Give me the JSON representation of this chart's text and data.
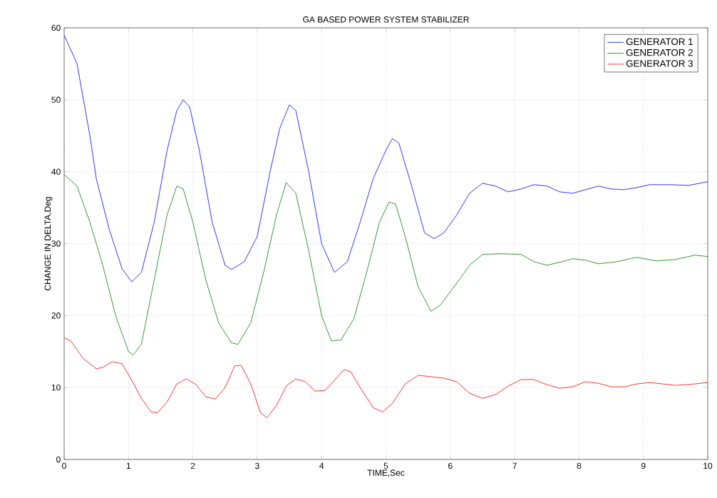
{
  "chart_data": {
    "type": "line",
    "title": "GA BASED POWER SYSTEM STABILIZER",
    "xlabel": "TIME,Sec",
    "ylabel": "CHANGE IN DELTA,Deg",
    "xlim": [
      0,
      10
    ],
    "ylim": [
      0,
      60
    ],
    "xticks": [
      0,
      1,
      2,
      3,
      4,
      5,
      6,
      7,
      8,
      9,
      10
    ],
    "yticks": [
      0,
      10,
      20,
      30,
      40,
      50,
      60
    ],
    "grid": true,
    "legend": "top right",
    "series": [
      {
        "name": "GENERATOR 1",
        "color": "#0000ff",
        "x": [
          0,
          0.2,
          0.4,
          0.5,
          0.7,
          0.9,
          1.05,
          1.2,
          1.4,
          1.6,
          1.75,
          1.85,
          1.95,
          2.1,
          2.3,
          2.5,
          2.6,
          2.8,
          3.0,
          3.2,
          3.35,
          3.5,
          3.6,
          3.8,
          4.0,
          4.2,
          4.4,
          4.6,
          4.8,
          5.0,
          5.1,
          5.2,
          5.4,
          5.6,
          5.75,
          5.9,
          6.1,
          6.3,
          6.5,
          6.7,
          6.9,
          7.1,
          7.3,
          7.5,
          7.7,
          7.9,
          8.1,
          8.3,
          8.5,
          8.7,
          8.9,
          9.1,
          9.4,
          9.7,
          10
        ],
        "values": [
          59,
          55,
          45,
          39,
          32,
          26.5,
          24.7,
          26,
          33,
          43,
          48.5,
          50,
          49,
          43,
          33,
          27,
          26.4,
          27.5,
          31,
          40,
          46,
          49.3,
          48.5,
          40,
          30,
          26,
          27.5,
          33,
          39,
          43,
          44.6,
          44,
          38,
          31.5,
          30.7,
          31.5,
          34,
          37,
          38.4,
          38,
          37.2,
          37.6,
          38.2,
          38,
          37.2,
          37,
          37.5,
          38,
          37.6,
          37.5,
          37.8,
          38.2,
          38.2,
          38.1,
          38.6
        ]
      },
      {
        "name": "GENERATOR 2",
        "color": "#008000",
        "x": [
          0,
          0.2,
          0.4,
          0.6,
          0.8,
          1.0,
          1.07,
          1.2,
          1.4,
          1.6,
          1.75,
          1.85,
          2.0,
          2.2,
          2.4,
          2.6,
          2.7,
          2.9,
          3.1,
          3.3,
          3.45,
          3.6,
          3.8,
          4.0,
          4.15,
          4.3,
          4.5,
          4.7,
          4.9,
          5.05,
          5.15,
          5.3,
          5.5,
          5.7,
          5.85,
          6.1,
          6.3,
          6.5,
          6.8,
          7.1,
          7.3,
          7.5,
          7.7,
          7.9,
          8.1,
          8.3,
          8.6,
          8.9,
          9.2,
          9.5,
          9.8,
          10
        ],
        "values": [
          39.6,
          38,
          33,
          27,
          20,
          15,
          14.5,
          16,
          25,
          34,
          38,
          37.6,
          33,
          25,
          19,
          16.2,
          16,
          19,
          26,
          34,
          38.5,
          37,
          29,
          20,
          16.5,
          16.6,
          19.5,
          26,
          33,
          35.8,
          35.5,
          31,
          24,
          20.6,
          21.5,
          24.5,
          27,
          28.5,
          28.6,
          28.5,
          27.5,
          27,
          27.4,
          27.9,
          27.7,
          27.2,
          27.5,
          28.1,
          27.6,
          27.8,
          28.4,
          28.2
        ]
      },
      {
        "name": "GENERATOR 3",
        "color": "#ff0000",
        "x": [
          0,
          0.1,
          0.3,
          0.5,
          0.6,
          0.75,
          0.9,
          1.05,
          1.2,
          1.35,
          1.45,
          1.6,
          1.75,
          1.9,
          2.05,
          2.2,
          2.35,
          2.5,
          2.65,
          2.75,
          2.9,
          3.05,
          3.15,
          3.3,
          3.45,
          3.6,
          3.75,
          3.9,
          4.05,
          4.2,
          4.35,
          4.45,
          4.6,
          4.8,
          4.95,
          5.1,
          5.3,
          5.5,
          5.7,
          5.9,
          6.1,
          6.3,
          6.5,
          6.7,
          6.9,
          7.1,
          7.3,
          7.5,
          7.7,
          7.9,
          8.1,
          8.3,
          8.5,
          8.7,
          8.9,
          9.1,
          9.3,
          9.5,
          9.8,
          10
        ],
        "values": [
          16.9,
          16.5,
          14,
          12.6,
          12.8,
          13.6,
          13.3,
          11,
          8.5,
          6.6,
          6.5,
          8,
          10.5,
          11.2,
          10.4,
          8.7,
          8.4,
          10,
          13,
          13.1,
          10.5,
          6.5,
          5.8,
          7.5,
          10.2,
          11.2,
          10.8,
          9.5,
          9.6,
          11,
          12.5,
          12.2,
          10,
          7.2,
          6.6,
          7.8,
          10.5,
          11.7,
          11.5,
          11.3,
          10.8,
          9.2,
          8.5,
          9,
          10.2,
          11.1,
          11.1,
          10.4,
          9.9,
          10.1,
          10.8,
          10.6,
          10.1,
          10.1,
          10.5,
          10.7,
          10.5,
          10.3,
          10.5,
          10.7
        ]
      }
    ]
  }
}
